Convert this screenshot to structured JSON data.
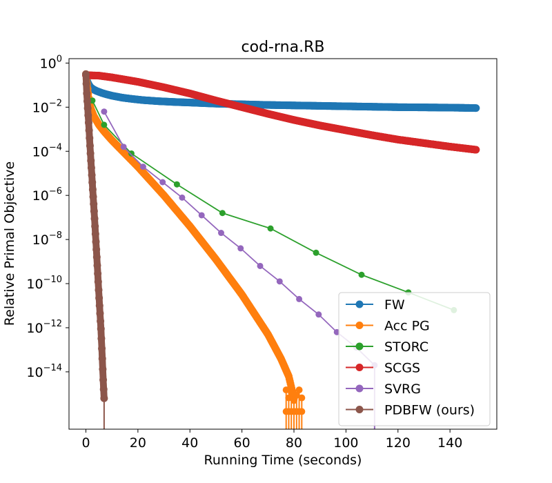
{
  "chart_data": {
    "type": "line",
    "title": "cod-rna.RB",
    "xlabel": "Running Time (seconds)",
    "ylabel": "Relative Primal Objective",
    "xlim": [
      -6.5,
      158
    ],
    "ylim_log10": [
      -16.6,
      0.2
    ],
    "yscale": "log",
    "x_ticks": [
      0,
      20,
      40,
      60,
      80,
      100,
      120,
      140
    ],
    "y_ticks": [
      {
        "base": "10",
        "exp": "0",
        "log": 0
      },
      {
        "base": "10",
        "exp": "−2",
        "log": -2
      },
      {
        "base": "10",
        "exp": "−4",
        "log": -4
      },
      {
        "base": "10",
        "exp": "−6",
        "log": -6
      },
      {
        "base": "10",
        "exp": "−8",
        "log": -8
      },
      {
        "base": "10",
        "exp": "−10",
        "log": -10
      },
      {
        "base": "10",
        "exp": "−12",
        "log": -12
      },
      {
        "base": "10",
        "exp": "−14",
        "log": -14
      }
    ],
    "legend_position": "lower-right",
    "series": [
      {
        "name": "FW",
        "color": "#1f77b4",
        "mode": "dense",
        "points": [
          [
            0.3,
            -0.7
          ],
          [
            0.6,
            -0.85
          ],
          [
            1,
            -0.95
          ],
          [
            1.5,
            -1.05
          ],
          [
            2,
            -1.12
          ],
          [
            3,
            -1.2
          ],
          [
            4,
            -1.26
          ],
          [
            6,
            -1.35
          ],
          [
            8,
            -1.42
          ],
          [
            10,
            -1.48
          ],
          [
            14,
            -1.57
          ],
          [
            18,
            -1.63
          ],
          [
            22,
            -1.68
          ],
          [
            28,
            -1.73
          ],
          [
            35,
            -1.77
          ],
          [
            40,
            -1.79
          ],
          [
            50,
            -1.84
          ],
          [
            60,
            -1.87
          ],
          [
            70,
            -1.9
          ],
          [
            80,
            -1.92
          ],
          [
            90,
            -1.94
          ],
          [
            100,
            -1.96
          ],
          [
            110,
            -1.98
          ],
          [
            120,
            -2.0
          ],
          [
            130,
            -2.01
          ],
          [
            140,
            -2.02
          ],
          [
            150,
            -2.04
          ]
        ]
      },
      {
        "name": "Acc PG",
        "color": "#ff7f0e",
        "mode": "dense",
        "points": [
          [
            0,
            -0.5
          ],
          [
            0.5,
            -1.0
          ],
          [
            1,
            -1.5
          ],
          [
            1.5,
            -1.9
          ],
          [
            2,
            -2.1
          ],
          [
            3,
            -2.4
          ],
          [
            4,
            -2.6
          ],
          [
            5,
            -2.8
          ],
          [
            7,
            -3.1
          ],
          [
            10,
            -3.5
          ],
          [
            15,
            -4.1
          ],
          [
            20,
            -4.7
          ],
          [
            30,
            -6.0
          ],
          [
            40,
            -7.4
          ],
          [
            50,
            -8.9
          ],
          [
            60,
            -10.5
          ],
          [
            70,
            -12.3
          ],
          [
            75,
            -13.4
          ],
          [
            78,
            -14.2
          ],
          [
            79,
            -14.7
          ],
          [
            80,
            -15.2
          ]
        ],
        "tail": {
          "x_start": 77,
          "x_end": 83,
          "base_log": -15.3
        }
      },
      {
        "name": "STORC",
        "color": "#2ca02c",
        "mode": "markers",
        "points": [
          [
            2.5,
            -1.7
          ],
          [
            7,
            -2.8
          ],
          [
            17.5,
            -4.1
          ],
          [
            35,
            -5.5
          ],
          [
            52.5,
            -6.8
          ],
          [
            71,
            -7.5
          ],
          [
            88.5,
            -8.6
          ],
          [
            106,
            -9.6
          ],
          [
            124,
            -10.4
          ],
          [
            141.5,
            -11.2
          ]
        ]
      },
      {
        "name": "SCGS",
        "color": "#d62728",
        "mode": "dense",
        "points": [
          [
            0,
            -0.55
          ],
          [
            5,
            -0.57
          ],
          [
            10,
            -0.65
          ],
          [
            20,
            -0.85
          ],
          [
            30,
            -1.1
          ],
          [
            40,
            -1.38
          ],
          [
            50,
            -1.7
          ],
          [
            60,
            -2.0
          ],
          [
            70,
            -2.3
          ],
          [
            80,
            -2.58
          ],
          [
            90,
            -2.83
          ],
          [
            100,
            -3.05
          ],
          [
            110,
            -3.27
          ],
          [
            120,
            -3.47
          ],
          [
            130,
            -3.63
          ],
          [
            140,
            -3.79
          ],
          [
            150,
            -3.93
          ]
        ]
      },
      {
        "name": "SVRG",
        "color": "#9467bd",
        "mode": "markers",
        "points": [
          [
            7,
            -2.2
          ],
          [
            14.5,
            -3.8
          ],
          [
            22,
            -4.7
          ],
          [
            29.5,
            -5.4
          ],
          [
            37,
            -6.1
          ],
          [
            44.5,
            -6.9
          ],
          [
            52,
            -7.7
          ],
          [
            59.5,
            -8.4
          ],
          [
            67,
            -9.2
          ],
          [
            74.5,
            -9.9
          ],
          [
            82,
            -10.7
          ],
          [
            89.5,
            -11.4
          ],
          [
            96.5,
            -12.2
          ],
          [
            104,
            -12.9
          ],
          [
            111,
            -13.7
          ]
        ],
        "tail": {
          "x": 111
        }
      },
      {
        "name": "PDBFW (ours)",
        "color": "#8c564b",
        "mode": "dense",
        "points": [
          [
            0,
            -0.5
          ],
          [
            0.4,
            -1.5
          ],
          [
            1,
            -2.6
          ],
          [
            1.7,
            -4.0
          ],
          [
            2.5,
            -5.5
          ],
          [
            3.3,
            -7.0
          ],
          [
            4.2,
            -8.8
          ],
          [
            5,
            -10.5
          ],
          [
            5.8,
            -12.1
          ],
          [
            6.3,
            -13.4
          ],
          [
            6.7,
            -14.5
          ],
          [
            7,
            -15.2
          ]
        ],
        "tail": {
          "x": 7
        }
      }
    ]
  }
}
